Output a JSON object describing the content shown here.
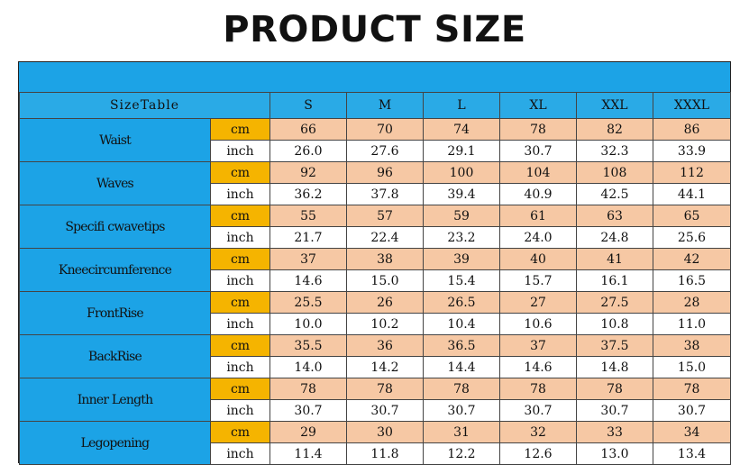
{
  "title": "PRODUCT SIZE",
  "table": {
    "corner_label": "SizeTable",
    "sizes": [
      "S",
      "M",
      "L",
      "XL",
      "XXL",
      "XXXL"
    ],
    "rows": [
      {
        "measure": "Waist",
        "cm_label": "cm",
        "inch_label": "inch",
        "cm": [
          "66",
          "70",
          "74",
          "78",
          "82",
          "86"
        ],
        "inch": [
          "26.0",
          "27.6",
          "29.1",
          "30.7",
          "32.3",
          "33.9"
        ]
      },
      {
        "measure": "Waves",
        "cm_label": "cm",
        "inch_label": "inch",
        "cm": [
          "92",
          "96",
          "100",
          "104",
          "108",
          "112"
        ],
        "inch": [
          "36.2",
          "37.8",
          "39.4",
          "40.9",
          "42.5",
          "44.1"
        ]
      },
      {
        "measure": "Specifi cwavetips",
        "cm_label": "cm",
        "inch_label": "inch",
        "cm": [
          "55",
          "57",
          "59",
          "61",
          "63",
          "65"
        ],
        "inch": [
          "21.7",
          "22.4",
          "23.2",
          "24.0",
          "24.8",
          "25.6"
        ]
      },
      {
        "measure": "Kneecircumference",
        "cm_label": "cm",
        "inch_label": "inch",
        "cm": [
          "37",
          "38",
          "39",
          "40",
          "41",
          "42"
        ],
        "inch": [
          "14.6",
          "15.0",
          "15.4",
          "15.7",
          "16.1",
          "16.5"
        ]
      },
      {
        "measure": "FrontRise",
        "cm_label": "cm",
        "inch_label": "inch",
        "cm": [
          "25.5",
          "26",
          "26.5",
          "27",
          "27.5",
          "28"
        ],
        "inch": [
          "10.0",
          "10.2",
          "10.4",
          "10.6",
          "10.8",
          "11.0"
        ]
      },
      {
        "measure": "BackRise",
        "cm_label": "cm",
        "inch_label": "inch",
        "cm": [
          "35.5",
          "36",
          "36.5",
          "37",
          "37.5",
          "38"
        ],
        "inch": [
          "14.0",
          "14.2",
          "14.4",
          "14.6",
          "14.8",
          "15.0"
        ]
      },
      {
        "measure": "Inner Length",
        "cm_label": "cm",
        "inch_label": "inch",
        "cm": [
          "78",
          "78",
          "78",
          "78",
          "78",
          "78"
        ],
        "inch": [
          "30.7",
          "30.7",
          "30.7",
          "30.7",
          "30.7",
          "30.7"
        ]
      },
      {
        "measure": "Legopening",
        "cm_label": "cm",
        "inch_label": "inch",
        "cm": [
          "29",
          "30",
          "31",
          "32",
          "33",
          "34"
        ],
        "inch": [
          "11.4",
          "11.8",
          "12.2",
          "12.6",
          "13.0",
          "13.4"
        ]
      }
    ]
  },
  "colors": {
    "header_blue": "#1ca3e6",
    "cm_label": "#f5b400",
    "cm_values": "#f6c8a4",
    "inch_values": "#ffffff"
  }
}
